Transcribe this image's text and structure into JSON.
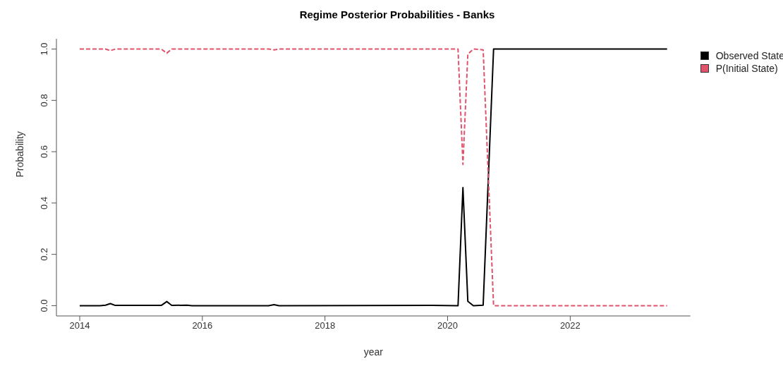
{
  "chart_data": {
    "type": "line",
    "title": "Regime Posterior Probabilities - Banks",
    "xlabel": "year",
    "ylabel": "Probability",
    "xlim": [
      2013.62,
      2023.96
    ],
    "xticks": [
      2014,
      2016,
      2018,
      2020,
      2022
    ],
    "ylim": [
      -0.04,
      1.04
    ],
    "yticks": [
      {
        "value": 0,
        "label": "0.0"
      },
      0.2,
      0.4,
      0.6,
      0.8,
      {
        "value": 1,
        "label": "1.0"
      }
    ],
    "legend": "top right",
    "grid": false,
    "series": [
      {
        "name": "Observed State",
        "color": "#000000",
        "line_style": "solid",
        "x": [
          2014,
          2014.33,
          2014.42,
          2014.5,
          2014.58,
          2015.33,
          2015.42,
          2015.5,
          2015.75,
          2015.83,
          2017.08,
          2017.17,
          2017.25,
          2019.75,
          2020.17,
          2020.25,
          2020.33,
          2020.42,
          2020.58,
          2020.75,
          2023.58
        ],
        "values": [
          0,
          0,
          0.002,
          0.008,
          0.001,
          0.001,
          0.016,
          0.001,
          0.002,
          0,
          0,
          0.004,
          0,
          0.001,
          0,
          0.46,
          0.017,
          0,
          0.002,
          1,
          1
        ]
      },
      {
        "name": "P(Initial State)",
        "color": "#df536b",
        "line_style": "dashed",
        "x": [
          2014,
          2014.42,
          2014.5,
          2014.58,
          2015.33,
          2015.42,
          2015.5,
          2017.08,
          2017.17,
          2017.25,
          2020.17,
          2020.25,
          2020.33,
          2020.42,
          2020.58,
          2020.75,
          2023.58
        ],
        "values": [
          1,
          1,
          0.994,
          1,
          1,
          0.984,
          1,
          1,
          0.997,
          1,
          1,
          0.55,
          0.98,
          1,
          0.997,
          0,
          0
        ]
      }
    ]
  }
}
